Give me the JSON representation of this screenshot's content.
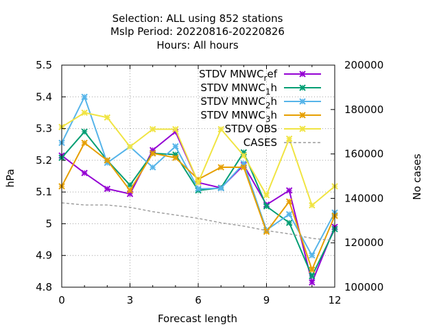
{
  "title_lines": [
    "Selection: ALL using   852 stations",
    "Mslp   Period: 20220816-20220826",
    "Hours:  All hours"
  ],
  "chart_data": {
    "type": "line",
    "xlabel": "Forecast length",
    "ylabel": "hPa",
    "y2label": "No cases",
    "xlim": [
      0,
      12
    ],
    "ylim": [
      4.8,
      5.5
    ],
    "y2lim": [
      100000,
      200000
    ],
    "xticks": [
      "0",
      "3",
      "6",
      "9",
      "12"
    ],
    "yticks": [
      "4.8",
      "4.9",
      "5",
      "5.1",
      "5.2",
      "5.3",
      "5.4",
      "5.5"
    ],
    "y2ticks": [
      "100000",
      "120000",
      "140000",
      "160000",
      "180000",
      "200000"
    ],
    "grid": true,
    "legend_position": "top-right",
    "series": [
      {
        "name": "STDV MNWC_ref",
        "legend_main": "STDV MNWC",
        "legend_sub": "r",
        "legend_tail": "ef",
        "color": "#9400d3",
        "axis": "y1",
        "marker": "x",
        "x": [
          0,
          1,
          2,
          3,
          4,
          5,
          6,
          7,
          8,
          9,
          10,
          11,
          12
        ],
        "y": [
          5.215,
          5.16,
          5.11,
          5.094,
          5.232,
          5.29,
          5.13,
          5.113,
          5.185,
          5.06,
          5.105,
          4.815,
          4.99
        ]
      },
      {
        "name": "STDV MNWC_1h",
        "legend_main": "STDV MNWC",
        "legend_sub": "1",
        "legend_tail": "h",
        "color": "#009e73",
        "axis": "y1",
        "marker": "x",
        "x": [
          0,
          1,
          2,
          3,
          4,
          5,
          6,
          7,
          8,
          9,
          10,
          11,
          12
        ],
        "y": [
          5.208,
          5.29,
          5.2,
          5.122,
          5.222,
          5.218,
          5.105,
          5.113,
          5.225,
          5.055,
          5.003,
          4.835,
          4.983
        ]
      },
      {
        "name": "STDV MNWC_2h",
        "legend_main": "STDV MNWC",
        "legend_sub": "2",
        "legend_tail": "h",
        "color": "#56b4e9",
        "axis": "y1",
        "marker": "x",
        "x": [
          0,
          1,
          2,
          3,
          4,
          5,
          6,
          7,
          8,
          9,
          10,
          11,
          12
        ],
        "y": [
          5.255,
          5.4,
          5.192,
          5.243,
          5.178,
          5.244,
          5.11,
          5.112,
          5.19,
          4.98,
          5.03,
          4.9,
          5.035
        ]
      },
      {
        "name": "STDV MNWC_3h",
        "legend_main": "STDV MNWC",
        "legend_sub": "3",
        "legend_tail": "h",
        "color": "#e69f00",
        "axis": "y1",
        "marker": "x",
        "x": [
          0,
          1,
          2,
          3,
          4,
          5,
          6,
          7,
          8,
          9,
          10,
          11,
          12
        ],
        "y": [
          5.118,
          5.255,
          5.2,
          5.105,
          5.222,
          5.208,
          5.14,
          5.178,
          5.178,
          4.975,
          5.07,
          4.855,
          5.025
        ]
      },
      {
        "name": "STDV OBS",
        "legend_main": "STDV OBS",
        "legend_sub": "",
        "legend_tail": "",
        "color": "#f0e442",
        "axis": "y1",
        "marker": "x",
        "x": [
          0,
          1,
          2,
          3,
          4,
          5,
          6,
          7,
          8,
          9,
          10,
          11,
          12
        ],
        "y": [
          5.305,
          5.35,
          5.335,
          5.243,
          5.298,
          5.298,
          5.13,
          5.298,
          5.215,
          5.09,
          5.268,
          5.058,
          5.118
        ]
      },
      {
        "name": "CASES",
        "legend_main": "CASES",
        "legend_sub": "",
        "legend_tail": "",
        "color": "#999999",
        "axis": "y2",
        "marker": "none",
        "dashed": true,
        "x": [
          0,
          1,
          2,
          3,
          4,
          5,
          6,
          7,
          8,
          9,
          10,
          11,
          12
        ],
        "y": [
          138000,
          137000,
          137000,
          136000,
          134000,
          132500,
          131000,
          129000,
          127500,
          125500,
          124000,
          122000,
          121000
        ]
      }
    ]
  }
}
